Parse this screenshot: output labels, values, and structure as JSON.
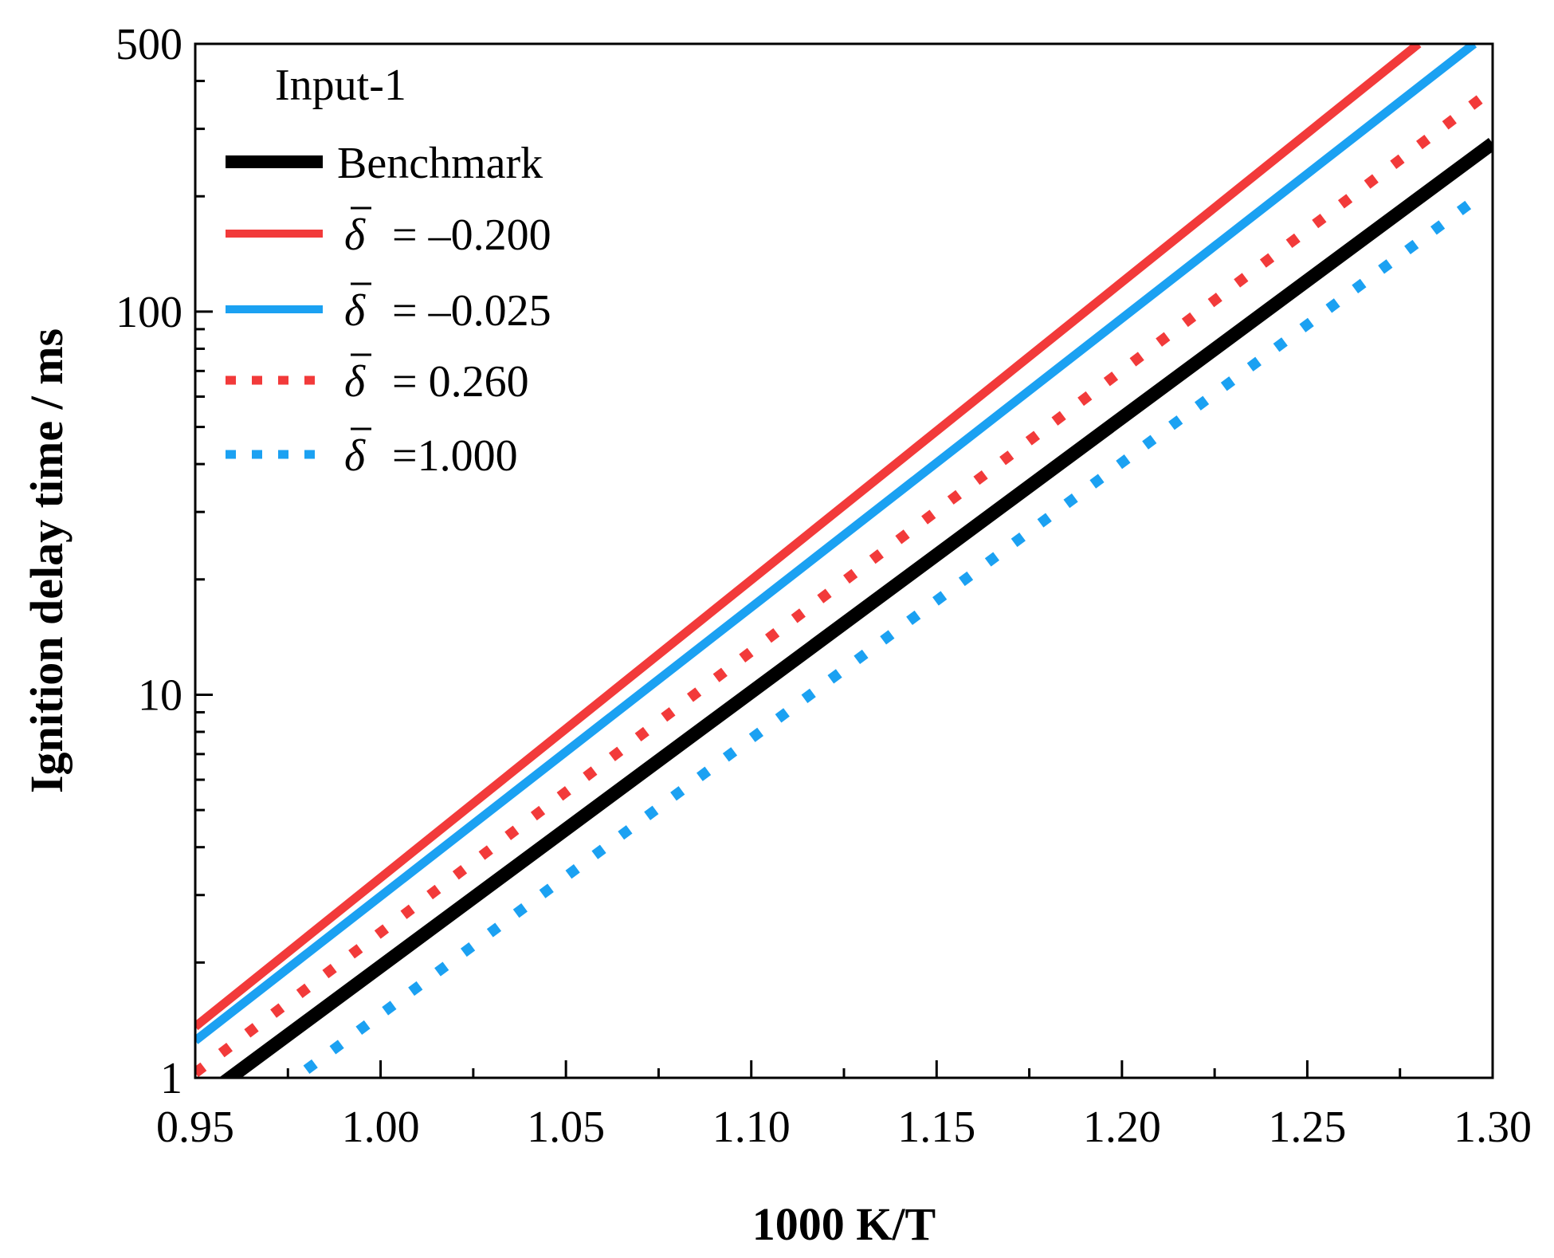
{
  "chart_data": {
    "type": "line",
    "title": "",
    "xlabel": "1000 K/T",
    "ylabel": "Ignition delay time / ms",
    "xlim": [
      0.95,
      1.3
    ],
    "ylim": [
      1,
      500
    ],
    "yscale": "log",
    "grid": false,
    "x_ticks": [
      0.95,
      1.0,
      1.05,
      1.1,
      1.15,
      1.2,
      1.25,
      1.3
    ],
    "x_tick_labels": [
      "0.95",
      "1.00",
      "1.05",
      "1.10",
      "1.15",
      "1.20",
      "1.25",
      "1.30"
    ],
    "x_minor_ticks": [
      0.975,
      1.025,
      1.075,
      1.125,
      1.175,
      1.225,
      1.275
    ],
    "y_ticks": [
      1,
      10,
      100,
      500
    ],
    "y_tick_labels": [
      "1",
      "10",
      "100",
      "500"
    ],
    "y_minor_ticks": [
      2,
      3,
      4,
      5,
      6,
      7,
      8,
      9,
      20,
      30,
      40,
      50,
      60,
      70,
      80,
      90,
      200,
      300,
      400
    ],
    "legend_title": "Input-1",
    "legend_position": "top-left",
    "series": [
      {
        "name": "Benchmark",
        "label_symbol": "",
        "label_value": "Benchmark",
        "color": "#000000",
        "style": "solid",
        "x": [
          0.955,
          1.3
        ],
        "y": [
          0.93,
          275
        ]
      },
      {
        "name": "δ̄ = –0.200",
        "label_symbol": "δ",
        "label_value": "= –0.200",
        "color": "#f23a3a",
        "style": "solid",
        "x": [
          0.95,
          1.28
        ],
        "y": [
          1.36,
          500
        ]
      },
      {
        "name": "δ̄ = –0.025",
        "label_symbol": "δ",
        "label_value": "= –0.025",
        "color": "#1ba1f2",
        "style": "solid",
        "x": [
          0.95,
          1.295
        ],
        "y": [
          1.25,
          500
        ]
      },
      {
        "name": "δ̄ = 0.260",
        "label_symbol": "δ",
        "label_value": "= 0.260",
        "color": "#f23a3a",
        "style": "dotted",
        "x": [
          0.95,
          1.3
        ],
        "y": [
          1.03,
          380
        ]
      },
      {
        "name": "δ̄ = 1.000",
        "label_symbol": "δ",
        "label_value": "=1.000",
        "color": "#1ba1f2",
        "style": "dotted",
        "x": [
          0.98,
          1.295
        ],
        "y": [
          1.05,
          195
        ]
      }
    ]
  }
}
